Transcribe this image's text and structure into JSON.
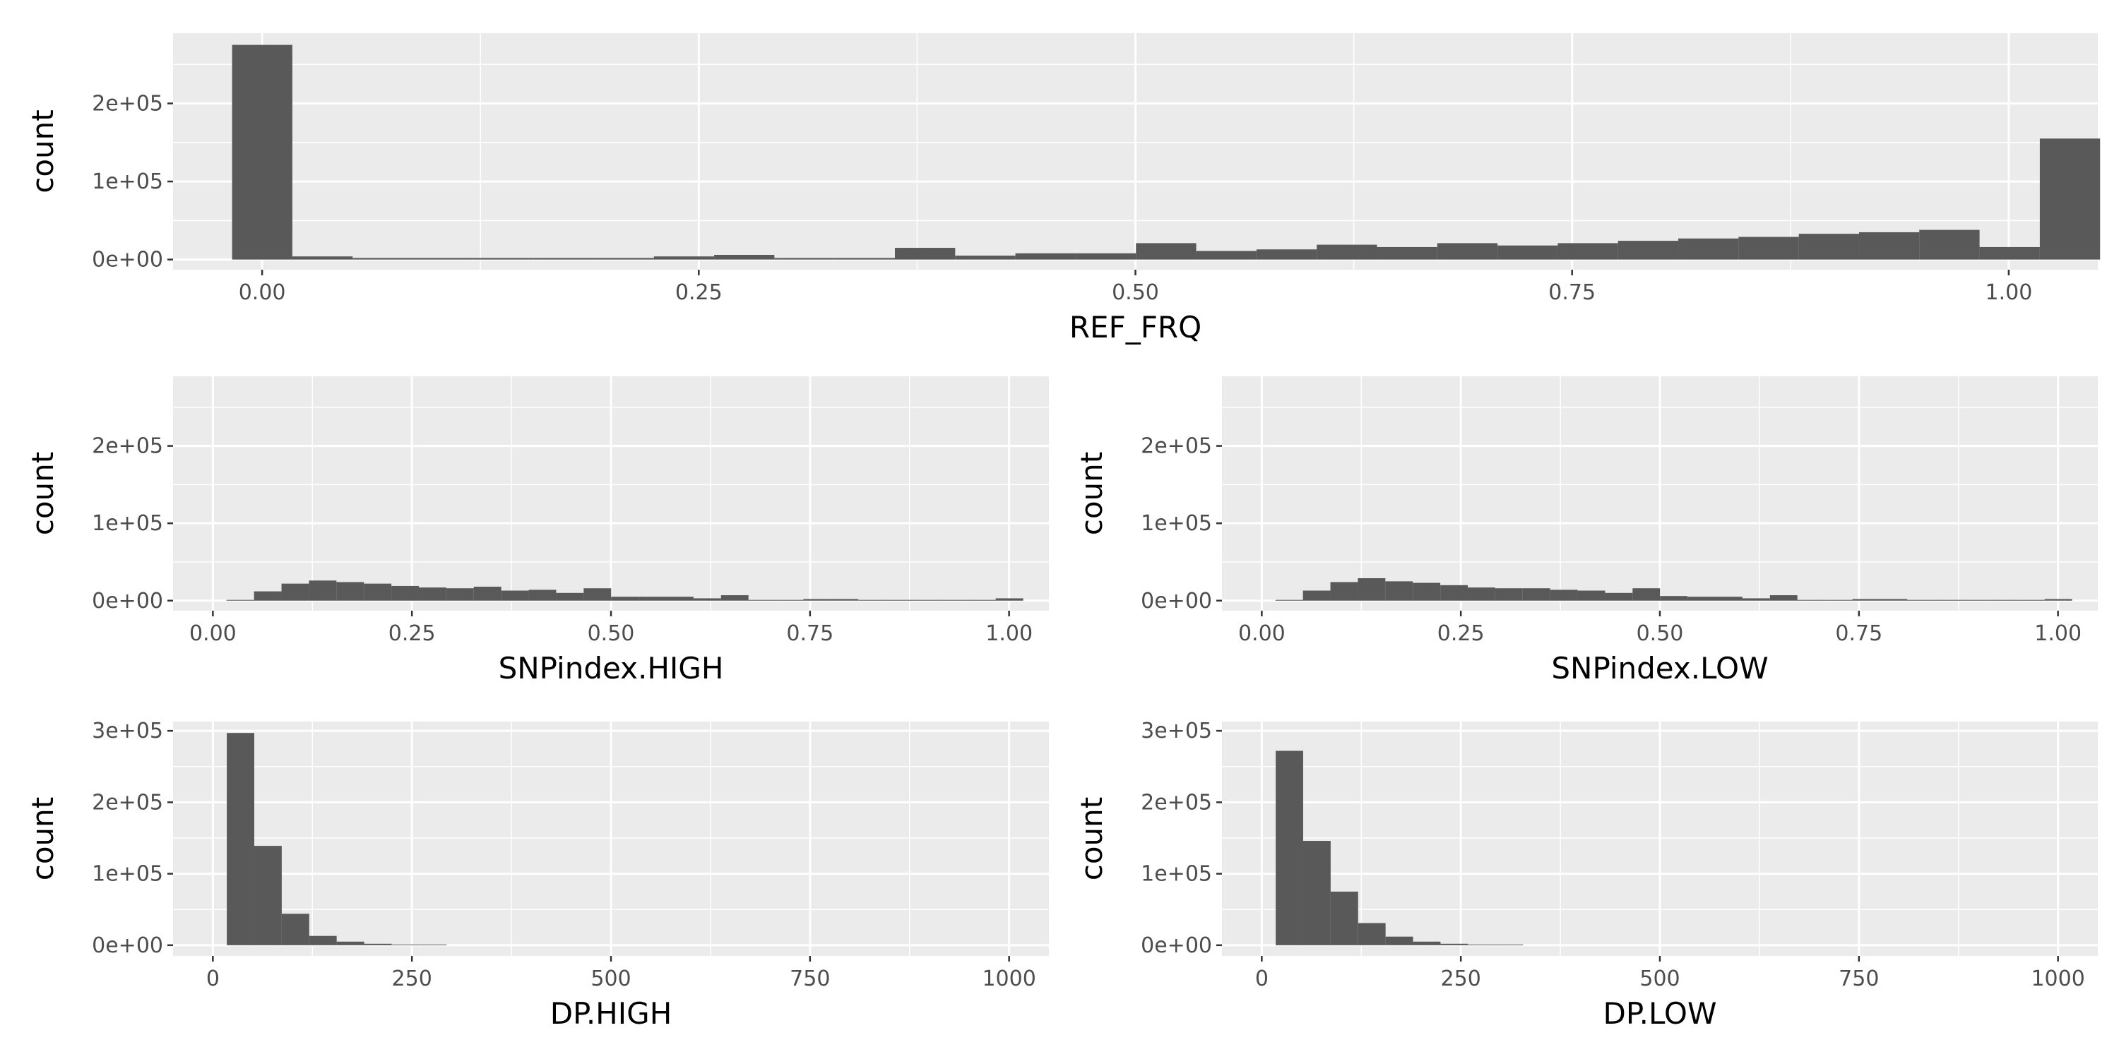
{
  "colors": {
    "panel_background": "#ebebeb",
    "grid_major": "#ffffff",
    "bar_fill": "#595959",
    "tick_text": "#4d4d4d",
    "axis_title_text": "#000000"
  },
  "chart_data": [
    {
      "type": "bar",
      "subtype": "histogram",
      "xlabel": "REF_FRQ",
      "ylabel": "count",
      "xlim": [
        -0.051,
        1.051
      ],
      "ylim": [
        -13000,
        290000
      ],
      "x_ticks": [
        0,
        0.25,
        0.5,
        0.75,
        1
      ],
      "x_tick_labels": [
        "0.00",
        "0.25",
        "0.50",
        "0.75",
        "1.00"
      ],
      "y_ticks": [
        0,
        100000,
        200000
      ],
      "y_tick_labels": [
        "0e+00",
        "1e+05",
        "2e+05"
      ],
      "grid": true,
      "bin_start": -0.0172,
      "bin_width": 0.0345,
      "values": [
        275000,
        4000,
        2000,
        2000,
        2000,
        2000,
        2000,
        4000,
        6000,
        2000,
        2000,
        15000,
        5000,
        8000,
        8000,
        21000,
        11000,
        13000,
        19000,
        16000,
        21000,
        18000,
        21000,
        24000,
        27000,
        29000,
        33000,
        35000,
        38000,
        16000,
        155000
      ]
    },
    {
      "type": "bar",
      "subtype": "histogram",
      "xlabel": "SNPindex.HIGH",
      "ylabel": "count",
      "xlim": [
        -0.05,
        1.05
      ],
      "ylim": [
        -13000,
        290000
      ],
      "x_ticks": [
        0,
        0.25,
        0.5,
        0.75,
        1
      ],
      "x_tick_labels": [
        "0.00",
        "0.25",
        "0.50",
        "0.75",
        "1.00"
      ],
      "y_ticks": [
        0,
        100000,
        200000
      ],
      "y_tick_labels": [
        "0e+00",
        "1e+05",
        "2e+05"
      ],
      "grid": true,
      "bin_start": 0.0172,
      "bin_width": 0.0345,
      "values": [
        1000,
        12000,
        22000,
        26000,
        24000,
        22000,
        19000,
        17000,
        16000,
        18000,
        13000,
        14000,
        10000,
        16000,
        5000,
        5000,
        5000,
        3000,
        7000,
        1000,
        1000,
        2000,
        2000,
        1000,
        1000,
        1000,
        1000,
        1000,
        3000
      ]
    },
    {
      "type": "bar",
      "subtype": "histogram",
      "xlabel": "SNPindex.LOW",
      "ylabel": "count",
      "xlim": [
        -0.05,
        1.05
      ],
      "ylim": [
        -13000,
        290000
      ],
      "x_ticks": [
        0,
        0.25,
        0.5,
        0.75,
        1
      ],
      "x_tick_labels": [
        "0.00",
        "0.25",
        "0.50",
        "0.75",
        "1.00"
      ],
      "y_ticks": [
        0,
        100000,
        200000
      ],
      "y_tick_labels": [
        "0e+00",
        "1e+05",
        "2e+05"
      ],
      "grid": true,
      "bin_start": 0.0172,
      "bin_width": 0.0345,
      "values": [
        1000,
        13000,
        24000,
        29000,
        25000,
        23000,
        20000,
        17000,
        16000,
        16000,
        14000,
        13000,
        10000,
        16000,
        6000,
        5000,
        5000,
        3000,
        7000,
        1000,
        1000,
        2000,
        2000,
        1000,
        1000,
        1000,
        1000,
        1000,
        2000
      ]
    },
    {
      "type": "bar",
      "subtype": "histogram",
      "xlabel": "DP.HIGH",
      "ylabel": "count",
      "xlim": [
        -50,
        1050
      ],
      "ylim": [
        -15000,
        313000
      ],
      "x_ticks": [
        0,
        250,
        500,
        750,
        1000
      ],
      "x_tick_labels": [
        "0",
        "250",
        "500",
        "750",
        "1000"
      ],
      "y_ticks": [
        0,
        100000,
        200000,
        300000
      ],
      "y_tick_labels": [
        "0e+00",
        "1e+05",
        "2e+05",
        "3e+05"
      ],
      "grid": true,
      "bin_start": 17.5,
      "bin_width": 34.5,
      "values": [
        297000,
        139000,
        44000,
        13000,
        5000,
        2000,
        1000,
        1000
      ]
    },
    {
      "type": "bar",
      "subtype": "histogram",
      "xlabel": "DP.LOW",
      "ylabel": "count",
      "xlim": [
        -50,
        1050
      ],
      "ylim": [
        -15000,
        313000
      ],
      "x_ticks": [
        0,
        250,
        500,
        750,
        1000
      ],
      "x_tick_labels": [
        "0",
        "250",
        "500",
        "750",
        "1000"
      ],
      "y_ticks": [
        0,
        100000,
        200000,
        300000
      ],
      "y_tick_labels": [
        "0e+00",
        "1e+05",
        "2e+05",
        "3e+05"
      ],
      "grid": true,
      "bin_start": 17.5,
      "bin_width": 34.5,
      "values": [
        272000,
        146000,
        75000,
        31000,
        12000,
        5000,
        2000,
        1000,
        1000
      ]
    }
  ]
}
